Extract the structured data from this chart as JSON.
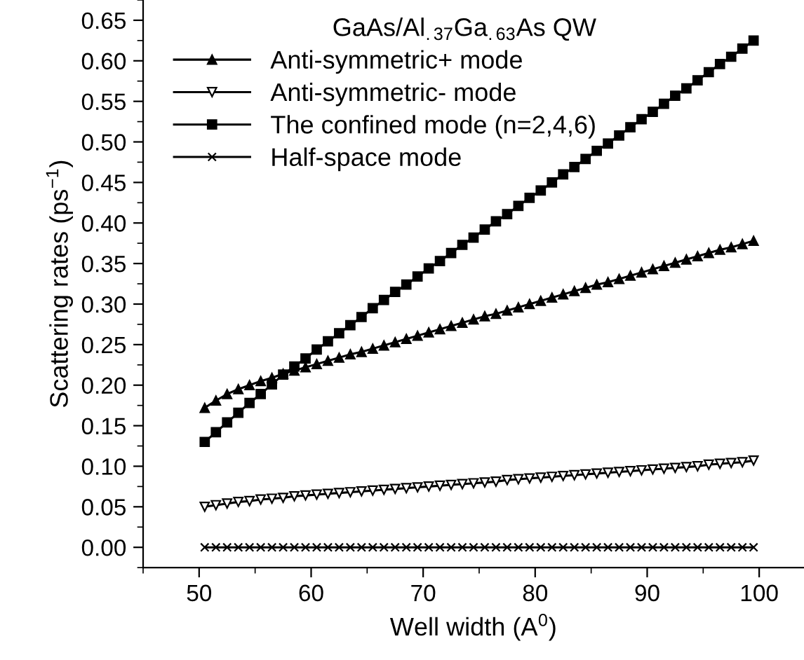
{
  "chart_data": {
    "type": "line",
    "legend_title": "GaAs/Al$_{.37}$Ga$_{.63}$As QW",
    "xlabel": "Well width (A$^{0}$)",
    "ylabel": "Scattering rates (ps$^{−1}$)",
    "x": [
      50.5,
      51.5,
      52.5,
      53.5,
      54.5,
      55.5,
      56.5,
      57.5,
      58.5,
      59.5,
      60.5,
      61.5,
      62.5,
      63.5,
      64.5,
      65.5,
      66.5,
      67.5,
      68.5,
      69.5,
      70.5,
      71.5,
      72.5,
      73.5,
      74.5,
      75.5,
      76.5,
      77.5,
      78.5,
      79.5,
      80.5,
      81.5,
      82.5,
      83.5,
      84.5,
      85.5,
      86.5,
      87.5,
      88.5,
      89.5,
      90.5,
      91.5,
      92.5,
      93.5,
      94.5,
      95.5,
      96.5,
      97.5,
      98.5,
      99.5
    ],
    "series": [
      {
        "name": "Anti-symmetric+ mode",
        "color": "#000000",
        "marker": "triangle",
        "values": [
          0.172,
          0.181,
          0.189,
          0.195,
          0.2,
          0.205,
          0.209,
          0.214,
          0.218,
          0.222,
          0.226,
          0.23,
          0.234,
          0.238,
          0.241,
          0.245,
          0.249,
          0.253,
          0.257,
          0.261,
          0.265,
          0.269,
          0.273,
          0.277,
          0.281,
          0.285,
          0.288,
          0.292,
          0.296,
          0.3,
          0.304,
          0.308,
          0.312,
          0.316,
          0.32,
          0.324,
          0.327,
          0.331,
          0.335,
          0.339,
          0.343,
          0.347,
          0.351,
          0.355,
          0.359,
          0.363,
          0.367,
          0.37,
          0.374,
          0.378
        ]
      },
      {
        "name": "Anti-symmetric- mode",
        "color": "#000000",
        "marker": "triangle_down_open",
        "values": [
          0.05,
          0.052,
          0.054,
          0.056,
          0.057,
          0.059,
          0.06,
          0.061,
          0.063,
          0.064,
          0.065,
          0.066,
          0.067,
          0.068,
          0.069,
          0.07,
          0.071,
          0.072,
          0.073,
          0.074,
          0.075,
          0.076,
          0.077,
          0.078,
          0.079,
          0.08,
          0.081,
          0.083,
          0.084,
          0.085,
          0.086,
          0.087,
          0.088,
          0.089,
          0.09,
          0.091,
          0.092,
          0.093,
          0.094,
          0.095,
          0.096,
          0.097,
          0.098,
          0.099,
          0.1,
          0.102,
          0.103,
          0.104,
          0.105,
          0.107
        ]
      },
      {
        "name": "The confined mode (n=2,4,6)",
        "color": "#000000",
        "marker": "square",
        "values": [
          0.13,
          0.142,
          0.154,
          0.166,
          0.178,
          0.189,
          0.201,
          0.213,
          0.223,
          0.233,
          0.244,
          0.254,
          0.264,
          0.274,
          0.284,
          0.295,
          0.305,
          0.315,
          0.324,
          0.334,
          0.344,
          0.353,
          0.363,
          0.373,
          0.382,
          0.392,
          0.402,
          0.411,
          0.421,
          0.431,
          0.44,
          0.45,
          0.46,
          0.469,
          0.479,
          0.489,
          0.498,
          0.508,
          0.518,
          0.528,
          0.537,
          0.547,
          0.557,
          0.566,
          0.576,
          0.586,
          0.596,
          0.605,
          0.615,
          0.625
        ]
      },
      {
        "name": "Half-space mode",
        "color": "#000000",
        "marker": "cross",
        "values": [
          0,
          0,
          0,
          0,
          0,
          0,
          0,
          0,
          0,
          0,
          0,
          0,
          0,
          0,
          0,
          0,
          0,
          0,
          0,
          0,
          0,
          0,
          0,
          0,
          0,
          0,
          0,
          0,
          0,
          0,
          0,
          0,
          0,
          0,
          0,
          0,
          0,
          0,
          0,
          0,
          0,
          0,
          0,
          0,
          0,
          0,
          0,
          0,
          0,
          0
        ]
      }
    ],
    "xlim": [
      45,
      104
    ],
    "xticks": [
      50,
      60,
      70,
      80,
      90,
      100
    ],
    "ylim": [
      -0.025,
      0.675
    ],
    "yticks": [
      {
        "value": 0,
        "label": "0.00"
      },
      {
        "value": 0.05,
        "label": "0.05"
      },
      {
        "value": 0.1,
        "label": "0.10"
      },
      {
        "value": 0.15,
        "label": "0.15"
      },
      {
        "value": 0.2,
        "label": "0.20"
      },
      {
        "value": 0.25,
        "label": "0.25"
      },
      {
        "value": 0.3,
        "label": "0.30"
      },
      {
        "value": 0.35,
        "label": "0.35"
      },
      {
        "value": 0.4,
        "label": "0.40"
      },
      {
        "value": 0.45,
        "label": "0.45"
      },
      {
        "value": 0.5,
        "label": "0.50"
      },
      {
        "value": 0.55,
        "label": "0.55"
      },
      {
        "value": 0.6,
        "label": "0.60"
      },
      {
        "value": 0.65,
        "label": "0.65"
      }
    ],
    "grid": false,
    "legend": "top left",
    "line_style": "solid"
  }
}
